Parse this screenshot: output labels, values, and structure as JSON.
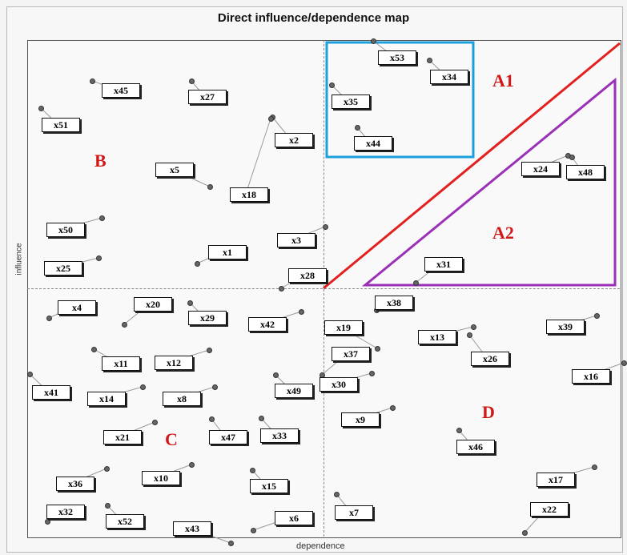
{
  "title": "Direct influence/dependence map",
  "x_axis_label": "dependence",
  "y_axis_label": "influence",
  "region_labels": {
    "A1": "A1",
    "A2": "A2",
    "B": "B",
    "C": "C",
    "D": "D"
  },
  "colors": {
    "A1_line": "#e32020",
    "A2_triangle": "#9b30b8",
    "A1_box": "#1aa0dc",
    "region_text": "#d01818"
  },
  "nodes": [
    "x53",
    "x34",
    "x35",
    "x44",
    "x24",
    "x48",
    "x31",
    "x45",
    "x27",
    "x51",
    "x2",
    "x5",
    "x18",
    "x50",
    "x3",
    "x1",
    "x25",
    "x28",
    "x4",
    "x20",
    "x29",
    "x42",
    "x11",
    "x12",
    "x41",
    "x14",
    "x8",
    "x49",
    "x21",
    "x47",
    "x33",
    "x36",
    "x10",
    "x15",
    "x32",
    "x52",
    "x43",
    "x6",
    "x38",
    "x19",
    "x13",
    "x39",
    "x37",
    "x26",
    "x30",
    "x16",
    "x9",
    "x46",
    "x17",
    "x22",
    "x7"
  ]
}
